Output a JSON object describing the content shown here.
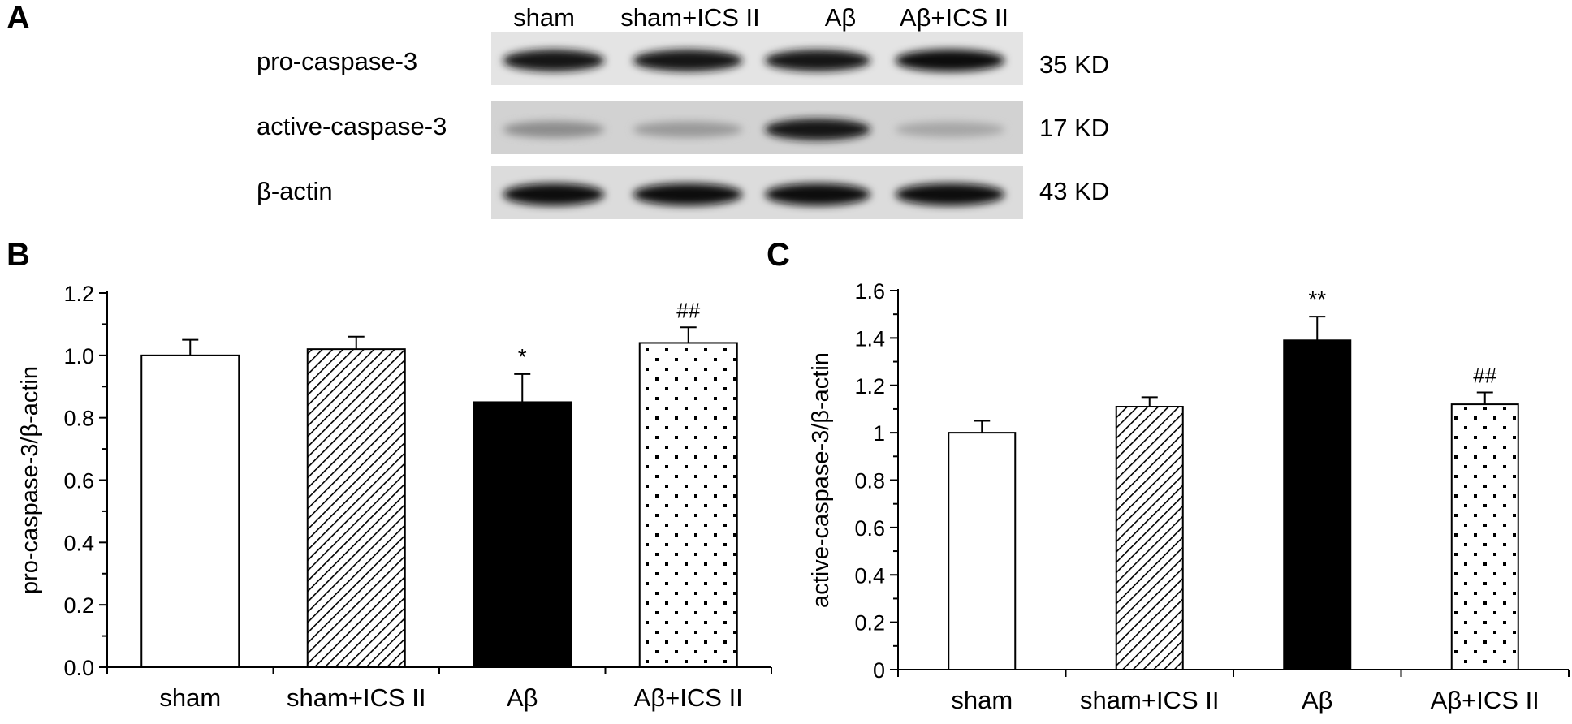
{
  "panels": {
    "a": "A",
    "b": "B",
    "c": "C"
  },
  "blot": {
    "lanes": [
      "sham",
      "sham+ICS II",
      "Aβ",
      "Aβ+ICS II"
    ],
    "rows": [
      {
        "label": "pro-caspase-3",
        "kd": "35 KD",
        "background": "#e4e4e4",
        "intensity": [
          0.92,
          0.92,
          0.9,
          0.95
        ]
      },
      {
        "label": "active-caspase-3",
        "kd": "17 KD",
        "background": "#d2d2d2",
        "intensity": [
          0.45,
          0.4,
          0.9,
          0.35
        ]
      },
      {
        "label": "β-actin",
        "kd": "43 KD",
        "background": "#dcdcdc",
        "intensity": [
          0.95,
          0.95,
          0.95,
          0.95
        ]
      }
    ]
  },
  "chart_data": [
    {
      "type": "bar",
      "panel": "B",
      "categories": [
        "sham",
        "sham+ICS II",
        "Aβ",
        "Aβ+ICS II"
      ],
      "values": [
        1.0,
        1.02,
        0.85,
        1.04
      ],
      "errors": [
        0.05,
        0.04,
        0.09,
        0.05
      ],
      "significance": [
        "",
        "",
        "*",
        "##"
      ],
      "patterns": [
        "white",
        "diagonal",
        "black",
        "dots"
      ],
      "ylabel": "pro-caspase-3/β-actin",
      "ylim": [
        0,
        1.2
      ],
      "yticks": [
        0,
        0.2,
        0.4,
        0.6,
        0.8,
        1.0,
        1.2
      ],
      "ytick_labels": [
        "0.0",
        "0.2",
        "0.4",
        "0.6",
        "0.8",
        "1.0",
        "1.2"
      ]
    },
    {
      "type": "bar",
      "panel": "C",
      "categories": [
        "sham",
        "sham+ICS II",
        "Aβ",
        "Aβ+ICS II"
      ],
      "values": [
        1.0,
        1.11,
        1.39,
        1.12
      ],
      "errors": [
        0.05,
        0.04,
        0.1,
        0.05
      ],
      "significance": [
        "",
        "",
        "**",
        "##"
      ],
      "patterns": [
        "white",
        "diagonal",
        "black",
        "dots"
      ],
      "ylabel": "active-caspase-3/β-actin",
      "ylim": [
        0,
        1.6
      ],
      "yticks": [
        0,
        0.2,
        0.4,
        0.6,
        0.8,
        1.0,
        1.2,
        1.4,
        1.6
      ],
      "ytick_labels": [
        "0",
        "0.2",
        "0.4",
        "0.6",
        "0.8",
        "1",
        "1.2",
        "1.4",
        "1.6"
      ]
    }
  ]
}
